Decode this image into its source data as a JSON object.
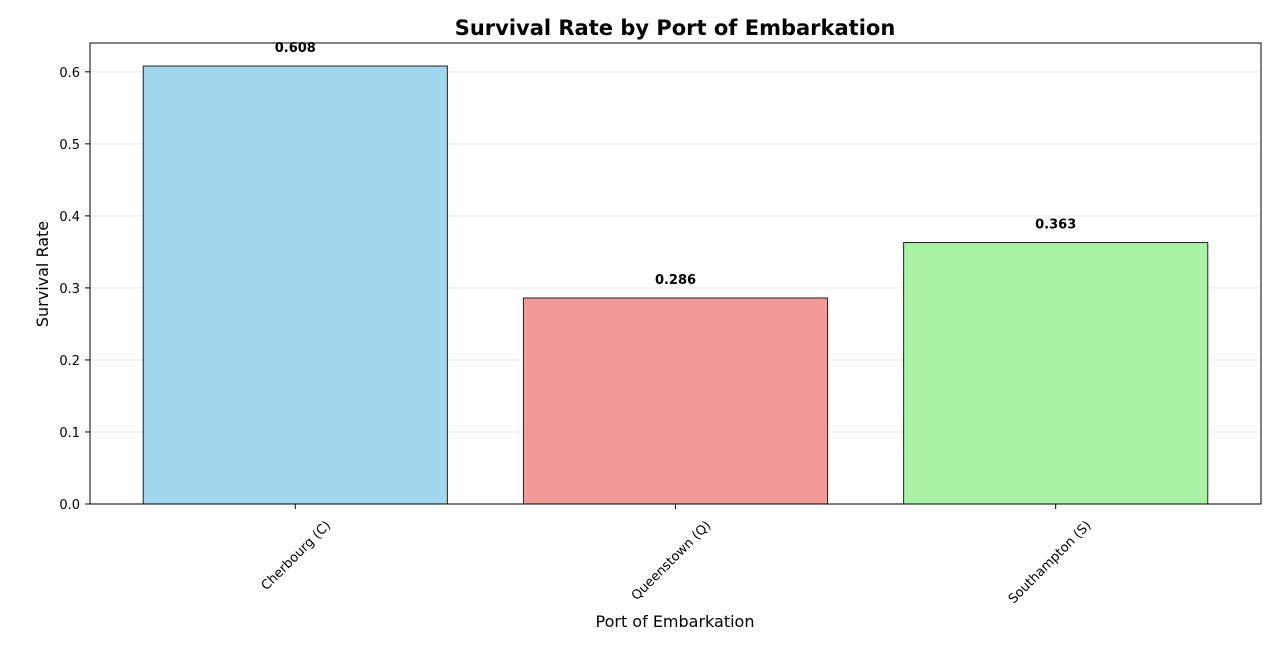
{
  "chart_data": {
    "type": "bar",
    "title": "Survival Rate by Port of Embarkation",
    "xlabel": "Port of Embarkation",
    "ylabel": "Survival Rate",
    "categories": [
      "Cherbourg (C)",
      "Queenstown (Q)",
      "Southampton (S)"
    ],
    "values": [
      0.608,
      0.286,
      0.363
    ],
    "data_labels": [
      "0.608",
      "0.286",
      "0.363"
    ],
    "colors": [
      "#a0d7ec",
      "#f29a98",
      "#a8f2a6"
    ],
    "edge_color": "#222222",
    "ylim": [
      0,
      0.64
    ],
    "yticks": [
      0.0,
      0.1,
      0.2,
      0.3,
      0.4,
      0.5,
      0.6
    ],
    "ytick_labels": [
      "0.0",
      "0.1",
      "0.2",
      "0.3",
      "0.4",
      "0.5",
      "0.6"
    ],
    "grid": "y-axis horizontal lines",
    "legend": "none"
  }
}
